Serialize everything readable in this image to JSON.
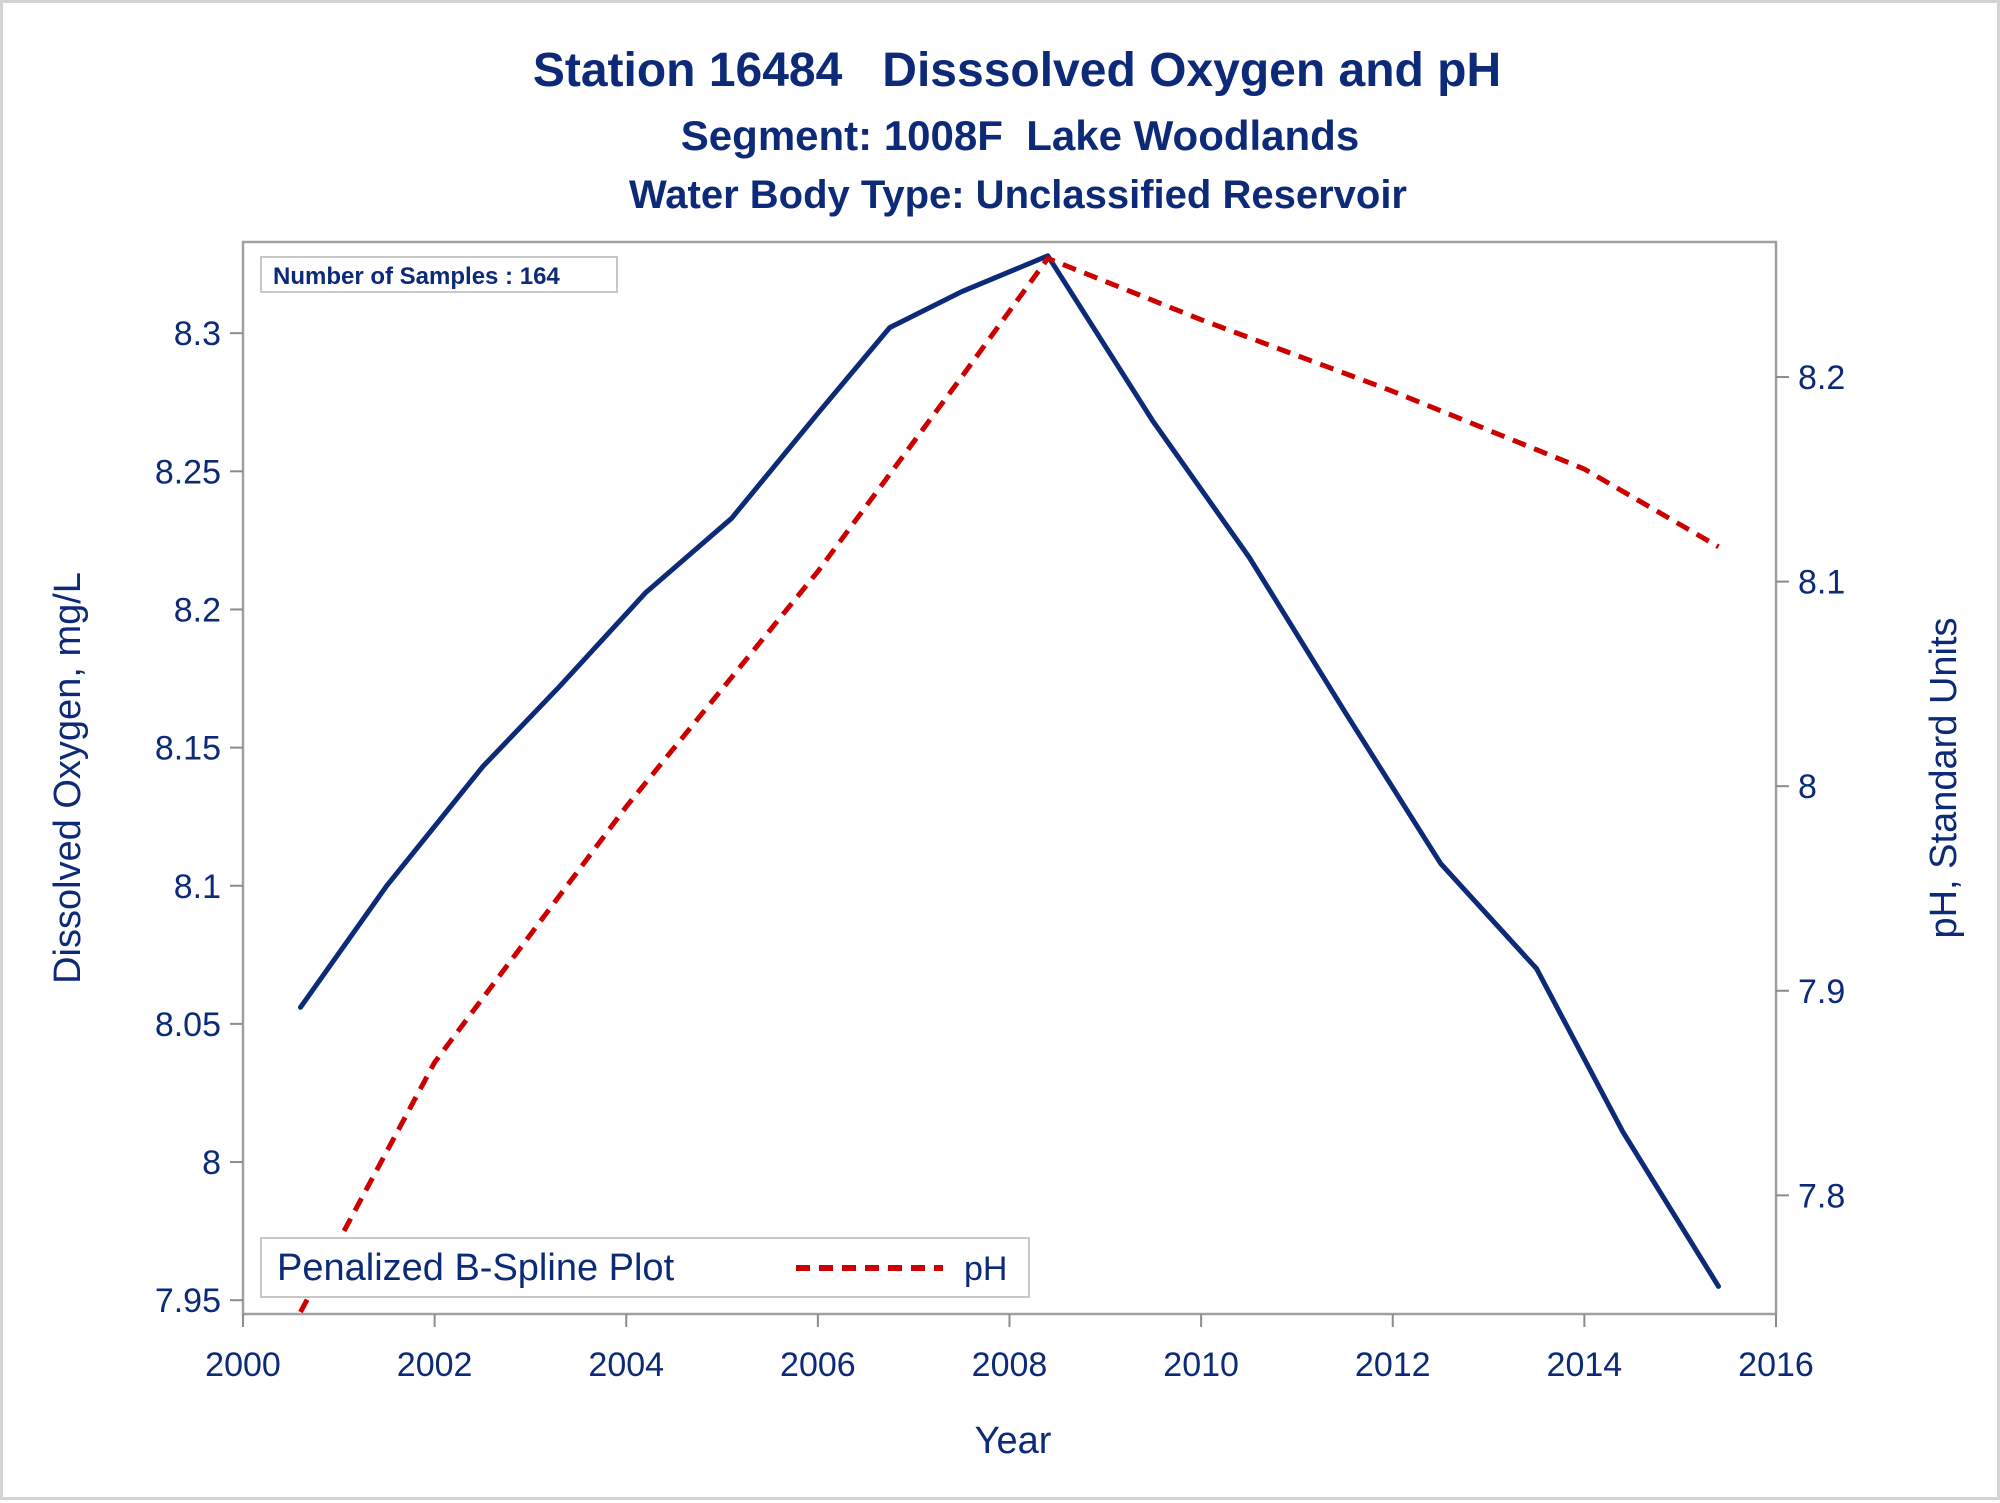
{
  "chart_data": {
    "type": "line",
    "title": "Station 16484   Disssolved Oxygen and pH",
    "subtitle": "Segment: 1008F  Lake Woodlands",
    "subtitle2": "Water Body Type: Unclassified Reservoir",
    "xlabel": "Year",
    "ylabel": "Dissolved Oxygen, mg/L",
    "y2label": "pH, Standard Units",
    "xlim": [
      2000,
      2016
    ],
    "ylim": [
      7.945,
      8.333
    ],
    "y2lim": [
      7.742,
      8.266
    ],
    "xticks": [
      "2000",
      "2002",
      "2004",
      "2006",
      "2008",
      "2010",
      "2012",
      "2014",
      "2016"
    ],
    "yticks": [
      "7.95",
      "8",
      "8.05",
      "8.1",
      "8.15",
      "8.2",
      "8.25",
      "8.3"
    ],
    "y2ticks": [
      "7.8",
      "7.9",
      "8",
      "8.1",
      "8.2"
    ],
    "inset_label": "Number of Samples : 164",
    "legend": {
      "title": "Penalized B-Spline Plot",
      "placement": "bottom-left"
    },
    "series": [
      {
        "key": "do",
        "axis": "left",
        "color": "#0d2a78",
        "style": "solid",
        "x": [
          2000.6,
          2001.5,
          2002.5,
          2003.3,
          2004.2,
          2005.1,
          2006.0,
          2006.75,
          2007.5,
          2008.4,
          2009.5,
          2010.5,
          2011.5,
          2012.5,
          2013.5,
          2014.4,
          2015.4
        ],
        "values": [
          8.056,
          8.1,
          8.143,
          8.172,
          8.206,
          8.233,
          8.271,
          8.302,
          8.315,
          8.328,
          8.268,
          8.219,
          8.163,
          8.108,
          8.07,
          8.011,
          7.955
        ]
      },
      {
        "key": "ph",
        "name": "pH",
        "axis": "right",
        "color": "#cc0000",
        "style": "dashed",
        "x": [
          2000.6,
          2002.0,
          2004.0,
          2006.0,
          2007.5,
          2008.4,
          2010.0,
          2012.0,
          2014.0,
          2015.4
        ],
        "values": [
          7.743,
          7.865,
          7.99,
          8.105,
          8.2,
          8.258,
          8.228,
          8.193,
          8.155,
          8.117
        ]
      }
    ]
  }
}
